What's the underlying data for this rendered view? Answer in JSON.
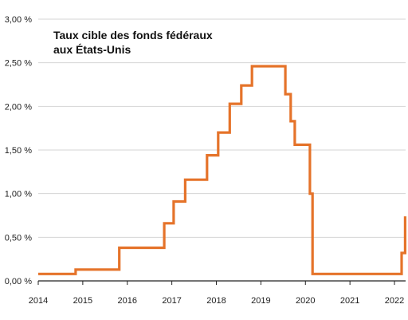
{
  "chart_data": {
    "type": "line",
    "step": true,
    "title": [
      "Taux cible des fonds fédéraux",
      "aux États-Unis"
    ],
    "xlabel": "",
    "ylabel": "",
    "x_ticks": [
      "2014",
      "2015",
      "2016",
      "2017",
      "2018",
      "2019",
      "2020",
      "2021",
      "2022"
    ],
    "y_ticks": [
      "0,00 %",
      "0,50 %",
      "1,00 %",
      "1,50 %",
      "2,00 %",
      "2,50 %",
      "3,00 %"
    ],
    "xlim": [
      2014.0,
      2022.25
    ],
    "ylim": [
      0,
      3.0
    ],
    "grid": "horizontal",
    "legend": "none",
    "series": [
      {
        "color": "#E5732A",
        "points": [
          [
            2014.0,
            0.08
          ],
          [
            2014.84,
            0.08
          ],
          [
            2014.84,
            0.13
          ],
          [
            2015.82,
            0.13
          ],
          [
            2015.82,
            0.38
          ],
          [
            2016.83,
            0.38
          ],
          [
            2016.83,
            0.66
          ],
          [
            2017.04,
            0.66
          ],
          [
            2017.04,
            0.91
          ],
          [
            2017.3,
            0.91
          ],
          [
            2017.3,
            1.16
          ],
          [
            2017.79,
            1.16
          ],
          [
            2017.79,
            1.44
          ],
          [
            2018.04,
            1.44
          ],
          [
            2018.04,
            1.7
          ],
          [
            2018.3,
            1.7
          ],
          [
            2018.3,
            2.03
          ],
          [
            2018.56,
            2.03
          ],
          [
            2018.56,
            2.24
          ],
          [
            2018.8,
            2.24
          ],
          [
            2018.8,
            2.46
          ],
          [
            2019.55,
            2.46
          ],
          [
            2019.55,
            2.14
          ],
          [
            2019.67,
            2.14
          ],
          [
            2019.67,
            1.83
          ],
          [
            2019.76,
            1.83
          ],
          [
            2019.76,
            1.56
          ],
          [
            2020.1,
            1.56
          ],
          [
            2020.1,
            1.0
          ],
          [
            2020.16,
            1.0
          ],
          [
            2020.16,
            0.08
          ],
          [
            2022.16,
            0.08
          ],
          [
            2022.16,
            0.32
          ],
          [
            2022.24,
            0.32
          ],
          [
            2022.24,
            0.74
          ]
        ]
      }
    ]
  }
}
